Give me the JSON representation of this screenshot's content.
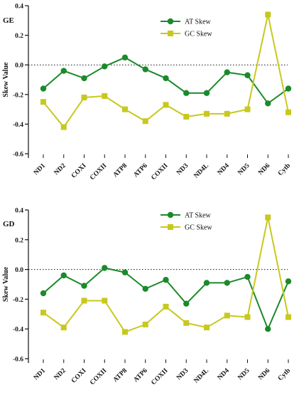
{
  "chart_data": [
    {
      "type": "line",
      "panel_label": "GE",
      "ylabel": "Skew Value",
      "ylim": [
        -0.6,
        0.4
      ],
      "yticks": [
        -0.6,
        -0.4,
        -0.2,
        0.0,
        0.2,
        0.4
      ],
      "ytick_labels": [
        "-0.6",
        "-0.4",
        "-0.2",
        "0.0",
        "0.2",
        "0.4"
      ],
      "reference_line": 0.0,
      "reference_line_style": "dotted",
      "legend_position": "top-center",
      "categories": [
        "ND1",
        "ND2",
        "COXI",
        "COXII",
        "ATP8",
        "ATP6",
        "COXII",
        "ND3",
        "ND4L",
        "ND4",
        "ND5",
        "ND6",
        "Cytb"
      ],
      "series": [
        {
          "name": "AT Skew",
          "marker": "circle",
          "color": "#1a8a2a",
          "values": [
            -0.16,
            -0.04,
            -0.09,
            -0.01,
            0.05,
            -0.03,
            -0.09,
            -0.19,
            -0.19,
            -0.05,
            -0.07,
            -0.26,
            -0.16
          ]
        },
        {
          "name": "GC Skew",
          "marker": "square",
          "color": "#c8c81e",
          "values": [
            -0.25,
            -0.42,
            -0.22,
            -0.21,
            -0.3,
            -0.38,
            -0.27,
            -0.35,
            -0.33,
            -0.33,
            -0.3,
            0.34,
            -0.32
          ]
        }
      ]
    },
    {
      "type": "line",
      "panel_label": "GD",
      "ylabel": "Skew Value",
      "ylim": [
        -0.6,
        0.4
      ],
      "yticks": [
        -0.6,
        -0.4,
        -0.2,
        0.0,
        0.2,
        0.4
      ],
      "ytick_labels": [
        "-0.6",
        "-0.4",
        "-0.2",
        "0.0",
        "0.2",
        "0.4"
      ],
      "reference_line": 0.0,
      "reference_line_style": "dotted",
      "legend_position": "top-center",
      "categories": [
        "ND1",
        "ND2",
        "COXI",
        "COXII",
        "ATP8",
        "ATP6",
        "COXII",
        "ND3",
        "ND4L",
        "ND4",
        "ND5",
        "ND6",
        "Cytb"
      ],
      "series": [
        {
          "name": "AT Skew",
          "marker": "circle",
          "color": "#1a8a2a",
          "values": [
            -0.16,
            -0.04,
            -0.11,
            0.01,
            -0.02,
            -0.13,
            -0.07,
            -0.23,
            -0.09,
            -0.09,
            -0.05,
            -0.4,
            -0.08
          ]
        },
        {
          "name": "GC Skew",
          "marker": "square",
          "color": "#c8c81e",
          "values": [
            -0.29,
            -0.39,
            -0.21,
            -0.21,
            -0.42,
            -0.37,
            -0.25,
            -0.36,
            -0.39,
            -0.31,
            -0.32,
            0.35,
            -0.32
          ]
        }
      ]
    }
  ]
}
